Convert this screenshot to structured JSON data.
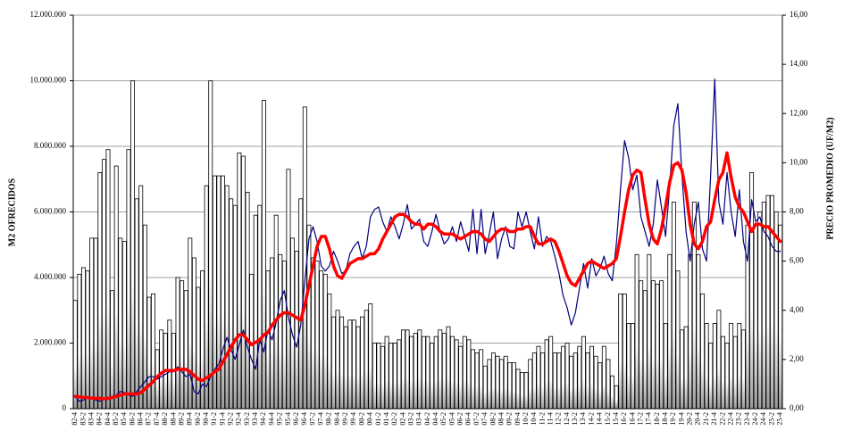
{
  "chart_data": {
    "type": "combo",
    "y_label": "M2 OFRECIDOS",
    "y2_label": "PRECIO PROMEDIO (UF/M2)",
    "categories": [
      "82-4",
      null,
      "83-2",
      null,
      "83-4",
      null,
      "84-2",
      null,
      "84-4",
      null,
      "85-2",
      null,
      "85-4",
      null,
      "86-2",
      null,
      "86-4",
      null,
      "87-2",
      null,
      "87-4",
      null,
      "88-2",
      null,
      "88-4",
      null,
      "89-2",
      null,
      "89-4",
      null,
      "90-2",
      null,
      "90-4",
      null,
      "91-2",
      null,
      "91-4",
      null,
      "92-2",
      null,
      "92-4",
      null,
      "93-2",
      null,
      "93-4",
      null,
      "94-2",
      null,
      "94-4",
      null,
      "95-2",
      null,
      "95-4",
      null,
      "96-2",
      null,
      "96-4",
      null,
      "97-2",
      null,
      "97-4",
      null,
      "98-2",
      null,
      "98-4",
      null,
      "99-2",
      null,
      "99-4",
      null,
      "00-2",
      null,
      "00-4",
      null,
      "01-2",
      null,
      "01-4",
      null,
      "02-2",
      null,
      "02-4",
      null,
      "03-2",
      null,
      "03-4",
      null,
      "04-2",
      null,
      "04-4",
      null,
      "05-2",
      null,
      "05-4",
      null,
      "06-2",
      null,
      "06-4",
      null,
      "07-2",
      null,
      "07-4",
      null,
      "08-2",
      null,
      "08-4",
      null,
      "09-2",
      null,
      "09-4",
      null,
      "10-2",
      null,
      "10-4",
      null,
      "11-2",
      null,
      "11-4",
      null,
      "12-2",
      null,
      "12-4",
      null,
      "13-2",
      null,
      "13-4",
      null,
      "14-2",
      null,
      "14-4",
      null,
      "15-2",
      null,
      "15-4",
      null,
      "16-2",
      null,
      "16-4",
      null,
      "17-2",
      null,
      "17-4",
      null,
      "18-2",
      null,
      "18-4",
      null,
      "19-2",
      null,
      "19-4",
      null,
      "20-2",
      null,
      "20-4",
      null,
      "21-2",
      null,
      "21-4",
      null,
      "22-2",
      null,
      "22-4",
      null,
      "23-2",
      null,
      "23-4",
      null,
      "24-2",
      null,
      "24-4",
      null,
      "25-2",
      null,
      "25-4"
    ],
    "series": [
      {
        "type": "bar",
        "color": "#000000",
        "values": [
          3300000.0,
          4100000.0,
          4300000.0,
          4200000.0,
          5200000.0,
          5200000.0,
          7200000.0,
          7600000.0,
          7900000.0,
          3600000.0,
          7400000.0,
          5200000.0,
          5100000.0,
          7900000.0,
          10000000.0,
          6400000.0,
          6800000.0,
          5600000.0,
          3400000.0,
          3500000.0,
          1800000.0,
          2400000.0,
          2300000.0,
          2700000.0,
          2300000.0,
          4000000.0,
          3900000.0,
          3600000.0,
          5200000.0,
          4600000.0,
          3700000.0,
          4200000.0,
          6800000.0,
          10000000.0,
          7100000.0,
          7100000.0,
          7100000.0,
          6800000.0,
          6400000.0,
          6200000.0,
          7800000.0,
          7700000.0,
          6600000.0,
          4100000.0,
          5900000.0,
          6200000.0,
          9400000.0,
          4200000.0,
          4600000.0,
          5900000.0,
          4700000.0,
          4500000.0,
          7300000.0,
          5200000.0,
          4800000.0,
          6400000.0,
          9200000.0,
          5600000.0,
          4600000.0,
          4500000.0,
          4200000.0,
          4100000.0,
          3500000.0,
          2800000.0,
          3000000.0,
          2800000.0,
          2500000.0,
          2700000.0,
          2700000.0,
          2500000.0,
          2800000.0,
          3000000.0,
          3200000.0,
          2000000.0,
          2000000.0,
          1900000.0,
          2200000.0,
          2000000.0,
          2000000.0,
          2100000.0,
          2400000.0,
          2400000.0,
          2200000.0,
          2300000.0,
          2400000.0,
          2200000.0,
          2200000.0,
          2000000.0,
          2200000.0,
          2400000.0,
          2300000.0,
          2500000.0,
          2200000.0,
          2100000.0,
          1900000.0,
          2200000.0,
          2100000.0,
          1800000.0,
          1700000.0,
          1800000.0,
          1300000.0,
          1500000.0,
          1700000.0,
          1600000.0,
          1500000.0,
          1600000.0,
          1400000.0,
          1400000.0,
          1200000.0,
          1100000.0,
          1100000.0,
          1500000.0,
          1700000.0,
          1900000.0,
          1700000.0,
          2100000.0,
          2200000.0,
          1700000.0,
          1700000.0,
          1900000.0,
          2000000.0,
          1600000.0,
          1700000.0,
          1900000.0,
          2200000.0,
          1700000.0,
          1900000.0,
          1600000.0,
          1400000.0,
          1900000.0,
          1500000.0,
          1000000.0,
          700000.0,
          3500000.0,
          3500000.0,
          2600000.0,
          2600000.0,
          4700000.0,
          3900000.0,
          3600000.0,
          4700000.0,
          3900000.0,
          3800000.0,
          3900000.0,
          2600000.0,
          4700000.0,
          6300000.0,
          4200000.0,
          2400000.0,
          2500000.0,
          4700000.0,
          6300000.0,
          4700000.0,
          3500000.0,
          2600000.0,
          2000000.0,
          2600000.0,
          3000000.0,
          2200000.0,
          2000000.0,
          2600000.0,
          2200000.0,
          2600000.0,
          2400000.0,
          5600000.0,
          7200000.0,
          5600000.0,
          6000000.0,
          6300000.0,
          6500000.0,
          6500000.0,
          6000000.0,
          5600000.0
        ]
      },
      {
        "type": "line",
        "axis": "y2",
        "color": "#000080",
        "width": 1.2,
        "values": [
          0.5,
          0.3,
          0.35,
          0.45,
          0.4,
          0.35,
          0.3,
          0.4,
          0.45,
          0.5,
          0.55,
          0.7,
          0.65,
          0.55,
          0.5,
          0.7,
          0.9,
          1.1,
          1.3,
          1.3,
          1.2,
          1.3,
          1.4,
          1.5,
          1.5,
          1.7,
          1.5,
          1.3,
          1.4,
          0.7,
          0.6,
          1.0,
          0.9,
          1.3,
          1.6,
          1.8,
          2.4,
          2.9,
          2.4,
          2.0,
          2.6,
          3.2,
          2.5,
          2.0,
          1.6,
          2.8,
          2.3,
          3.2,
          2.8,
          3.5,
          4.4,
          4.8,
          3.7,
          3.0,
          2.5,
          3.4,
          5.2,
          6.9,
          7.4,
          6.8,
          5.8,
          5.6,
          5.8,
          6.4,
          6.0,
          5.5,
          5.6,
          6.3,
          6.6,
          6.8,
          6.1,
          6.6,
          7.8,
          8.1,
          8.2,
          7.6,
          7.2,
          7.8,
          7.4,
          6.9,
          7.5,
          8.3,
          7.3,
          7.5,
          7.7,
          6.8,
          6.6,
          7.2,
          7.9,
          7.2,
          6.7,
          6.9,
          7.4,
          6.8,
          7.6,
          7.0,
          6.4,
          8.1,
          6.3,
          8.1,
          6.3,
          7.1,
          8.0,
          6.1,
          6.9,
          7.4,
          6.6,
          6.5,
          8.0,
          7.4,
          8.0,
          7.2,
          6.5,
          7.8,
          6.6,
          7.0,
          6.8,
          6.2,
          5.5,
          4.6,
          4.1,
          3.4,
          3.9,
          4.9,
          5.9,
          4.9,
          6.1,
          5.4,
          5.7,
          6.2,
          5.5,
          5.2,
          6.7,
          8.9,
          10.9,
          10.2,
          8.9,
          9.5,
          7.8,
          7.2,
          6.6,
          7.5,
          9.3,
          8.2,
          7.0,
          9.0,
          11.5,
          12.4,
          9.5,
          7.2,
          6.0,
          7.5,
          8.4,
          6.5,
          6.0,
          9.5,
          13.4,
          8.4,
          7.5,
          9.6,
          8.0,
          7.0,
          8.9,
          6.8,
          6.0,
          8.5,
          7.6,
          7.8,
          7.2,
          7.0,
          6.6,
          6.4,
          6.4
        ]
      },
      {
        "type": "line",
        "axis": "y2",
        "color": "#ff0000",
        "width": 3.5,
        "values": [
          0.5,
          0.48,
          0.46,
          0.45,
          0.43,
          0.42,
          0.42,
          0.4,
          0.42,
          0.45,
          0.5,
          0.55,
          0.6,
          0.6,
          0.6,
          0.6,
          0.65,
          0.8,
          0.95,
          1.1,
          1.3,
          1.45,
          1.55,
          1.55,
          1.55,
          1.6,
          1.6,
          1.6,
          1.5,
          1.35,
          1.2,
          1.15,
          1.25,
          1.35,
          1.5,
          1.6,
          1.9,
          2.2,
          2.5,
          2.8,
          3.0,
          3.0,
          2.8,
          2.6,
          2.7,
          2.8,
          3.0,
          3.1,
          3.4,
          3.6,
          3.8,
          3.9,
          3.9,
          3.8,
          3.7,
          3.6,
          4.2,
          5.0,
          5.8,
          6.6,
          7.0,
          7.0,
          6.5,
          5.8,
          5.4,
          5.3,
          5.6,
          5.9,
          6.0,
          6.1,
          6.1,
          6.2,
          6.3,
          6.3,
          6.5,
          6.9,
          7.2,
          7.5,
          7.8,
          7.9,
          7.9,
          7.8,
          7.6,
          7.5,
          7.5,
          7.3,
          7.5,
          7.5,
          7.4,
          7.2,
          7.1,
          7.1,
          7.1,
          7.0,
          6.9,
          7.0,
          7.1,
          7.2,
          7.2,
          7.1,
          6.9,
          6.8,
          7.0,
          7.2,
          7.3,
          7.3,
          7.2,
          7.2,
          7.3,
          7.3,
          7.4,
          7.4,
          7.0,
          6.7,
          6.7,
          6.8,
          6.9,
          6.8,
          6.4,
          5.9,
          5.4,
          5.1,
          5.0,
          5.3,
          5.6,
          5.9,
          6.0,
          5.9,
          5.8,
          5.7,
          5.8,
          5.9,
          6.1,
          7.0,
          8.0,
          8.9,
          9.5,
          9.7,
          9.6,
          8.5,
          7.5,
          6.9,
          6.7,
          7.3,
          8.2,
          9.2,
          9.9,
          10.0,
          9.7,
          8.8,
          7.5,
          6.7,
          6.5,
          6.8,
          7.4,
          7.6,
          8.5,
          9.3,
          9.6,
          10.4,
          9.4,
          8.6,
          8.2,
          8.0,
          7.6,
          7.2,
          7.5,
          7.5,
          7.4,
          7.4,
          7.2,
          7.0,
          6.8
        ]
      }
    ],
    "ylim": [
      0,
      12000000
    ],
    "yticks": [
      0,
      {
        "value": 2000000,
        "label": "2.000.000"
      },
      {
        "value": 4000000,
        "label": "4.000.000"
      },
      {
        "value": 6000000,
        "label": "6.000.000"
      },
      {
        "value": 8000000,
        "label": "8.000.000"
      },
      {
        "value": 10000000,
        "label": "10.000.000"
      },
      {
        "value": 12000000,
        "label": "12.000.000"
      }
    ],
    "y2lim": [
      0,
      16
    ],
    "y2ticks": [
      {
        "value": 0,
        "label": "0,00"
      },
      {
        "value": 2,
        "label": "2,00"
      },
      {
        "value": 4,
        "label": "4,00"
      },
      {
        "value": 6,
        "label": "6,00"
      },
      {
        "value": 8,
        "label": "8,00"
      },
      {
        "value": 10,
        "label": "10,00"
      },
      {
        "value": 12,
        "label": "12,00"
      },
      {
        "value": 14,
        "label": "14,00"
      },
      {
        "value": 16,
        "label": "16,00"
      }
    ],
    "grid": true
  }
}
